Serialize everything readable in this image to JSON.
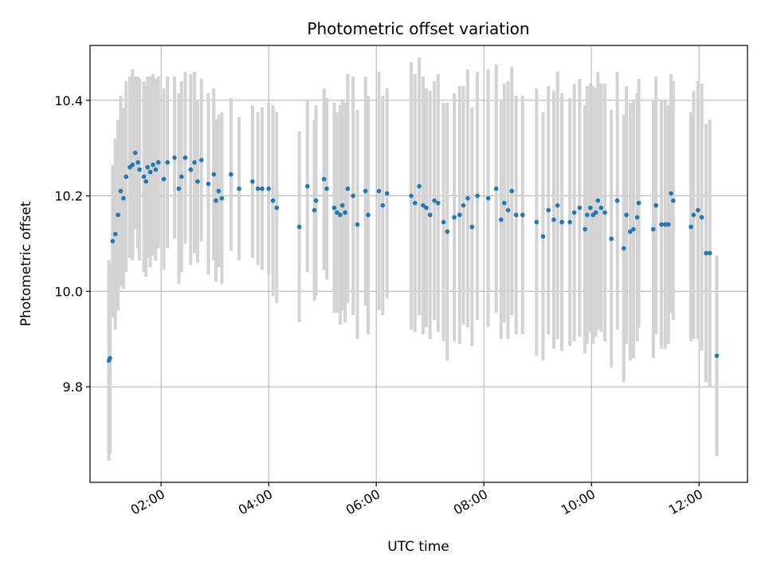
{
  "chart_data": {
    "type": "scatter",
    "title": "Photometric offset variation",
    "xlabel": "UTC time",
    "ylabel": "Photometric offset",
    "x_unit": "hours",
    "xlim": [
      0.68,
      12.9
    ],
    "ylim": [
      9.6,
      10.515
    ],
    "x_ticks": [
      {
        "value": 2,
        "label": "02:00"
      },
      {
        "value": 4,
        "label": "04:00"
      },
      {
        "value": 6,
        "label": "06:00"
      },
      {
        "value": 8,
        "label": "08:00"
      },
      {
        "value": 10,
        "label": "10:00"
      },
      {
        "value": 12,
        "label": "12:00"
      }
    ],
    "y_ticks": [
      {
        "value": 9.8,
        "label": "9.8"
      },
      {
        "value": 10.0,
        "label": "10.0"
      },
      {
        "value": 10.2,
        "label": "10.2"
      },
      {
        "value": 10.4,
        "label": "10.4"
      }
    ],
    "grid": true,
    "colors": {
      "points": "#1f77b4",
      "errorbars": "#d3d3d3",
      "grid": "#b0b0b0"
    },
    "series": [
      {
        "x": [
          1.03,
          1.05,
          1.1,
          1.15,
          1.2,
          1.25,
          1.3,
          1.35,
          1.42,
          1.47,
          1.52,
          1.57,
          1.6,
          1.68,
          1.72,
          1.75,
          1.8,
          1.85,
          1.9,
          1.95,
          2.05,
          2.12,
          2.25,
          2.33,
          2.38,
          2.45,
          2.55,
          2.62,
          2.68,
          2.75,
          2.88,
          2.98,
          3.02,
          3.07,
          3.13,
          3.3,
          3.45,
          3.7,
          3.8,
          3.88,
          4.0,
          4.08,
          4.15,
          4.57,
          4.72,
          4.85,
          4.88,
          5.03,
          5.08,
          5.22,
          5.27,
          5.33,
          5.37,
          5.42,
          5.47,
          5.57,
          5.65,
          5.8,
          5.85,
          6.05,
          6.12,
          6.2,
          6.65,
          6.72,
          6.8,
          6.87,
          6.93,
          7.0,
          7.08,
          7.15,
          7.25,
          7.32,
          7.45,
          7.55,
          7.62,
          7.7,
          7.78,
          7.88,
          8.08,
          8.23,
          8.32,
          8.38,
          8.45,
          8.52,
          8.6,
          8.72,
          8.98,
          9.1,
          9.2,
          9.3,
          9.37,
          9.45,
          9.6,
          9.68,
          9.78,
          9.88,
          9.92,
          9.98,
          10.03,
          10.08,
          10.12,
          10.18,
          10.25,
          10.37,
          10.48,
          10.6,
          10.65,
          10.72,
          10.78,
          10.85,
          10.88,
          11.15,
          11.2,
          11.3,
          11.37,
          11.43,
          11.48,
          11.52,
          11.85,
          11.9,
          11.98,
          12.05,
          12.13,
          12.2,
          12.33
        ],
        "y": [
          9.855,
          9.86,
          10.105,
          10.12,
          10.16,
          10.21,
          10.195,
          10.24,
          10.26,
          10.265,
          10.29,
          10.27,
          10.255,
          10.24,
          10.23,
          10.26,
          10.25,
          10.265,
          10.255,
          10.27,
          10.235,
          10.27,
          10.28,
          10.215,
          10.24,
          10.28,
          10.255,
          10.27,
          10.23,
          10.275,
          10.225,
          10.245,
          10.19,
          10.21,
          10.195,
          10.245,
          10.215,
          10.23,
          10.215,
          10.215,
          10.215,
          10.19,
          10.175,
          10.135,
          10.22,
          10.17,
          10.19,
          10.235,
          10.215,
          10.175,
          10.165,
          10.16,
          10.18,
          10.165,
          10.215,
          10.2,
          10.14,
          10.21,
          10.16,
          10.21,
          10.18,
          10.205,
          10.2,
          10.185,
          10.22,
          10.18,
          10.175,
          10.16,
          10.19,
          10.185,
          10.145,
          10.125,
          10.155,
          10.16,
          10.18,
          10.195,
          10.135,
          10.2,
          10.195,
          10.215,
          10.15,
          10.185,
          10.17,
          10.21,
          10.16,
          10.16,
          10.145,
          10.115,
          10.17,
          10.15,
          10.18,
          10.145,
          10.145,
          10.165,
          10.175,
          10.13,
          10.16,
          10.175,
          10.16,
          10.165,
          10.19,
          10.175,
          10.165,
          10.11,
          10.19,
          10.09,
          10.16,
          10.125,
          10.13,
          10.155,
          10.185,
          10.13,
          10.18,
          10.14,
          10.14,
          10.14,
          10.205,
          10.19,
          10.135,
          10.16,
          10.17,
          10.155,
          10.08,
          10.08,
          9.865
        ],
        "err": [
          0.21,
          0.2,
          0.16,
          0.2,
          0.2,
          0.2,
          0.19,
          0.2,
          0.19,
          0.2,
          0.16,
          0.18,
          0.19,
          0.2,
          0.2,
          0.19,
          0.2,
          0.19,
          0.19,
          0.18,
          0.19,
          0.18,
          0.17,
          0.2,
          0.2,
          0.18,
          0.2,
          0.19,
          0.17,
          0.17,
          0.19,
          0.18,
          0.17,
          0.16,
          0.18,
          0.16,
          0.15,
          0.16,
          0.16,
          0.17,
          0.18,
          0.2,
          0.2,
          0.2,
          0.18,
          0.19,
          0.2,
          0.19,
          0.19,
          0.22,
          0.21,
          0.23,
          0.22,
          0.23,
          0.24,
          0.25,
          0.24,
          0.24,
          0.25,
          0.25,
          0.23,
          0.22,
          0.28,
          0.27,
          0.27,
          0.27,
          0.25,
          0.26,
          0.25,
          0.27,
          0.25,
          0.27,
          0.26,
          0.27,
          0.25,
          0.27,
          0.25,
          0.26,
          0.27,
          0.26,
          0.25,
          0.25,
          0.27,
          0.26,
          0.25,
          0.25,
          0.28,
          0.26,
          0.26,
          0.27,
          0.28,
          0.27,
          0.26,
          0.27,
          0.27,
          0.26,
          0.27,
          0.26,
          0.27,
          0.26,
          0.27,
          0.26,
          0.27,
          0.27,
          0.27,
          0.28,
          0.27,
          0.27,
          0.27,
          0.26,
          0.26,
          0.27,
          0.27,
          0.26,
          0.26,
          0.25,
          0.25,
          0.25,
          0.24,
          0.26,
          0.27,
          0.28,
          0.27,
          0.28,
          0.21
        ]
      }
    ]
  }
}
